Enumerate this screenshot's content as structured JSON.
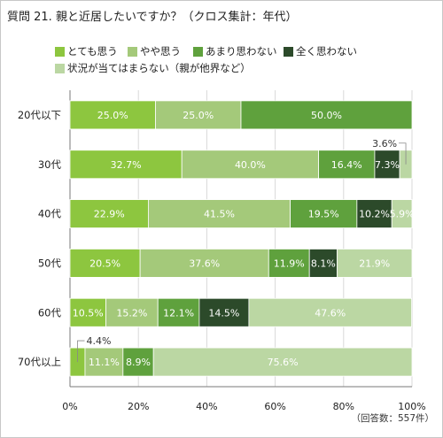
{
  "title": "質問 21. 親と近居したいですか？（クロス集計：年代）",
  "note": "（回答数：557件）",
  "colors": [
    "#8dc63f",
    "#a4c97a",
    "#5fa13d",
    "#2c4a2a",
    "#bbd7a3"
  ],
  "chart_data": {
    "type": "bar",
    "orientation": "horizontal",
    "stacked": "percent",
    "categories": [
      "20代以下",
      "30代",
      "40代",
      "50代",
      "60代",
      "70代以上"
    ],
    "series": [
      {
        "name": "とても思う",
        "values": [
          25.0,
          32.7,
          22.9,
          20.5,
          10.5,
          4.4
        ]
      },
      {
        "name": "やや思う",
        "values": [
          25.0,
          40.0,
          41.5,
          37.6,
          15.2,
          11.1
        ]
      },
      {
        "name": "あまり思わない",
        "values": [
          50.0,
          16.4,
          19.5,
          11.9,
          12.1,
          8.9
        ]
      },
      {
        "name": "全く思わない",
        "values": [
          0.0,
          7.3,
          10.2,
          8.1,
          14.5,
          0.0
        ]
      },
      {
        "name": "状況が当てはまらない（親が他界など）",
        "values": [
          0.0,
          3.6,
          5.9,
          21.9,
          47.6,
          75.6
        ]
      }
    ],
    "data_labels": [
      [
        "25.0%",
        "25.0%",
        "50.0%",
        "",
        ""
      ],
      [
        "32.7%",
        "40.0%",
        "16.4%",
        "7.3%",
        "3.6%"
      ],
      [
        "22.9%",
        "41.5%",
        "19.5%",
        "10.2%",
        "5.9%"
      ],
      [
        "20.5%",
        "37.6%",
        "11.9%",
        "8.1%",
        "21.9%"
      ],
      [
        "10.5%",
        "15.2%",
        "12.1%",
        "14.5%",
        "47.6%"
      ],
      [
        "4.4%",
        "11.1%",
        "8.9%",
        "",
        "75.6%"
      ]
    ],
    "xticks": [
      "0%",
      "20%",
      "40%",
      "60%",
      "80%",
      "100%"
    ],
    "xlim": [
      0,
      100
    ]
  }
}
